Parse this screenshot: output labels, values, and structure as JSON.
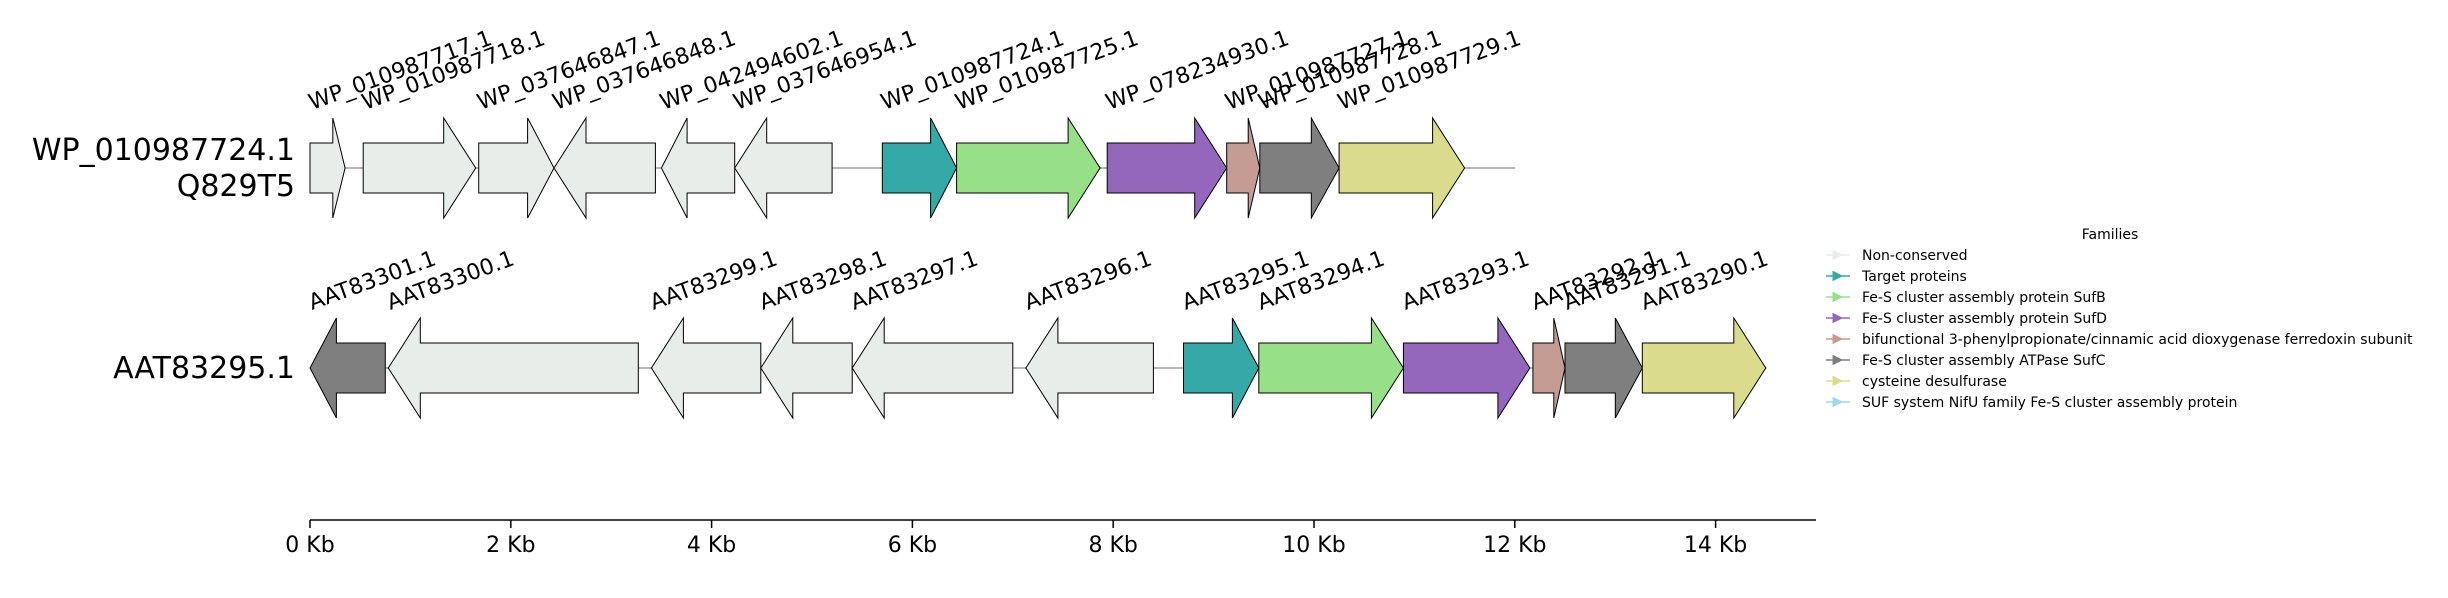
{
  "axis": {
    "ticks": [
      {
        "value": 0,
        "label": "0 Kb"
      },
      {
        "value": 2000,
        "label": "2 Kb"
      },
      {
        "value": 4000,
        "label": "4 Kb"
      },
      {
        "value": 6000,
        "label": "6 Kb"
      },
      {
        "value": 8000,
        "label": "8 Kb"
      },
      {
        "value": 10000,
        "label": "10 Kb"
      },
      {
        "value": 12000,
        "label": "12 Kb"
      },
      {
        "value": 14000,
        "label": "14 Kb"
      }
    ],
    "range": [
      0,
      15000
    ]
  },
  "families": [
    {
      "key": "nc",
      "name": "Non-conserved",
      "color": "#e8ede9"
    },
    {
      "key": "target",
      "name": "Target proteins",
      "color": "#35a8a8"
    },
    {
      "key": "sufb",
      "name": "Fe-S cluster assembly protein SufB",
      "color": "#98e088"
    },
    {
      "key": "sufd",
      "name": "Fe-S cluster assembly protein SufD",
      "color": "#9467bd"
    },
    {
      "key": "hcad",
      "name": "bifunctional 3-phenylpropionate/cinnamic acid dioxygenase ferredoxin subunit",
      "color": "#c49c94"
    },
    {
      "key": "sufc",
      "name": "Fe-S cluster assembly ATPase SufC",
      "color": "#7f7f7f"
    },
    {
      "key": "csd",
      "name": "cysteine desulfurase",
      "color": "#dbdb8d"
    },
    {
      "key": "nifu",
      "name": "SUF system NifU family Fe-S cluster assembly protein",
      "color": "#9edae5"
    }
  ],
  "legend": {
    "title": "Families"
  },
  "rows": [
    {
      "label_lines": [
        "WP_010987724.1",
        "Q829T5"
      ],
      "span": [
        0,
        12000
      ],
      "genes": [
        {
          "label": "WP_010987717.1",
          "start": 0,
          "end": 350,
          "strand": 1,
          "family": "nc"
        },
        {
          "label": "WP_010987718.1",
          "start": 530,
          "end": 1650,
          "strand": 1,
          "family": "nc"
        },
        {
          "label": "WP_037646847.1",
          "start": 1680,
          "end": 2430,
          "strand": 1,
          "family": "nc"
        },
        {
          "label": "WP_037646848.1",
          "start": 2430,
          "end": 3440,
          "strand": -1,
          "family": "nc"
        },
        {
          "label": "WP_042494602.1",
          "start": 3500,
          "end": 4230,
          "strand": -1,
          "family": "nc"
        },
        {
          "label": "WP_037646954.1",
          "start": 4230,
          "end": 5200,
          "strand": -1,
          "family": "nc"
        },
        {
          "label": "WP_010987724.1",
          "start": 5700,
          "end": 6440,
          "strand": 1,
          "family": "target"
        },
        {
          "label": "WP_010987725.1",
          "start": 6440,
          "end": 7870,
          "strand": 1,
          "family": "sufb"
        },
        {
          "label": "WP_078234930.1",
          "start": 7940,
          "end": 9130,
          "strand": 1,
          "family": "sufd"
        },
        {
          "label": "WP_010987727.1",
          "start": 9130,
          "end": 9460,
          "strand": 1,
          "family": "hcad"
        },
        {
          "label": "WP_010987728.1",
          "start": 9460,
          "end": 10250,
          "strand": 1,
          "family": "sufc"
        },
        {
          "label": "WP_010987729.1",
          "start": 10250,
          "end": 11500,
          "strand": 1,
          "family": "csd"
        }
      ]
    },
    {
      "label_lines": [
        "AAT83295.1"
      ],
      "span": [
        0,
        14500
      ],
      "genes": [
        {
          "label": "AAT83301.1",
          "start": 0,
          "end": 750,
          "strand": -1,
          "family": "sufc"
        },
        {
          "label": "AAT83300.1",
          "start": 780,
          "end": 3270,
          "strand": -1,
          "family": "nc"
        },
        {
          "label": "AAT83299.1",
          "start": 3400,
          "end": 4490,
          "strand": -1,
          "family": "nc"
        },
        {
          "label": "AAT83298.1",
          "start": 4490,
          "end": 5400,
          "strand": -1,
          "family": "nc"
        },
        {
          "label": "AAT83297.1",
          "start": 5400,
          "end": 7000,
          "strand": -1,
          "family": "nc"
        },
        {
          "label": "AAT83296.1",
          "start": 7130,
          "end": 8400,
          "strand": -1,
          "family": "nc"
        },
        {
          "label": "AAT83295.1",
          "start": 8700,
          "end": 9450,
          "strand": 1,
          "family": "target"
        },
        {
          "label": "AAT83294.1",
          "start": 9450,
          "end": 10890,
          "strand": 1,
          "family": "sufb"
        },
        {
          "label": "AAT83293.1",
          "start": 10890,
          "end": 12150,
          "strand": 1,
          "family": "sufd"
        },
        {
          "label": "AAT83292.1",
          "start": 12180,
          "end": 12500,
          "strand": 1,
          "family": "hcad"
        },
        {
          "label": "AAT83291.1",
          "start": 12500,
          "end": 13270,
          "strand": 1,
          "family": "sufc"
        },
        {
          "label": "AAT83290.1",
          "start": 13270,
          "end": 14500,
          "strand": 1,
          "family": "csd"
        }
      ]
    }
  ]
}
